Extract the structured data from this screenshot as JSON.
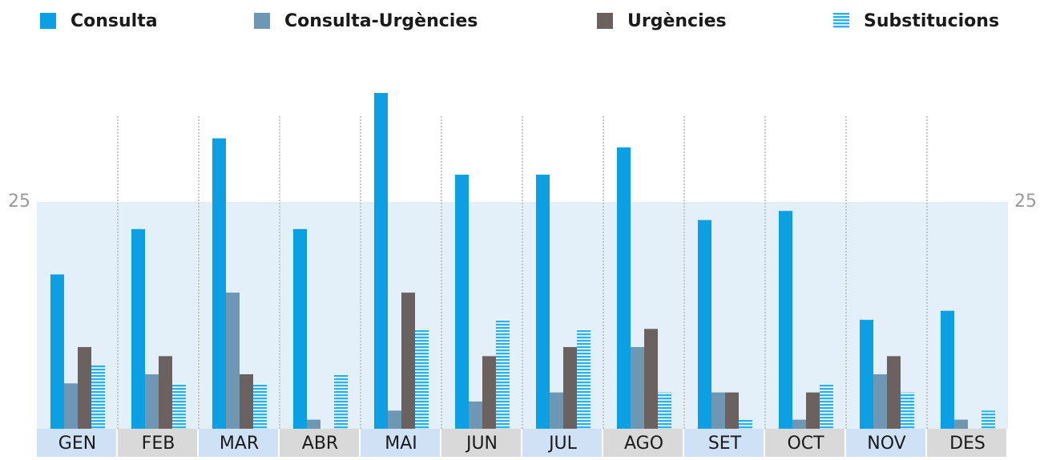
{
  "chart_data": {
    "type": "bar",
    "categories": [
      "GEN",
      "FEB",
      "MAR",
      "ABR",
      "MAI",
      "JUN",
      "JUL",
      "AGO",
      "SET",
      "OCT",
      "NOV",
      "DES"
    ],
    "series": [
      {
        "name": "Consulta",
        "color": "#0aa0e3",
        "values": [
          17,
          22,
          32,
          22,
          37,
          28,
          28,
          31,
          23,
          24,
          12,
          13
        ]
      },
      {
        "name": "Consulta-Urgències",
        "color": "#6e97b3",
        "values": [
          5,
          6,
          15,
          1,
          2,
          3,
          4,
          9,
          4,
          1,
          6,
          1
        ]
      },
      {
        "name": "Urgències",
        "color": "#6b615f",
        "values": [
          9,
          8,
          6,
          0,
          15,
          8,
          9,
          11,
          4,
          4,
          8,
          0
        ]
      },
      {
        "name": "Substitucions",
        "color": "#2ab0ea",
        "values": [
          7,
          5,
          5,
          6,
          11,
          12,
          11,
          4,
          1,
          5,
          4,
          2
        ]
      }
    ],
    "ylim": [
      0,
      40
    ],
    "yticks": [
      25
    ]
  }
}
